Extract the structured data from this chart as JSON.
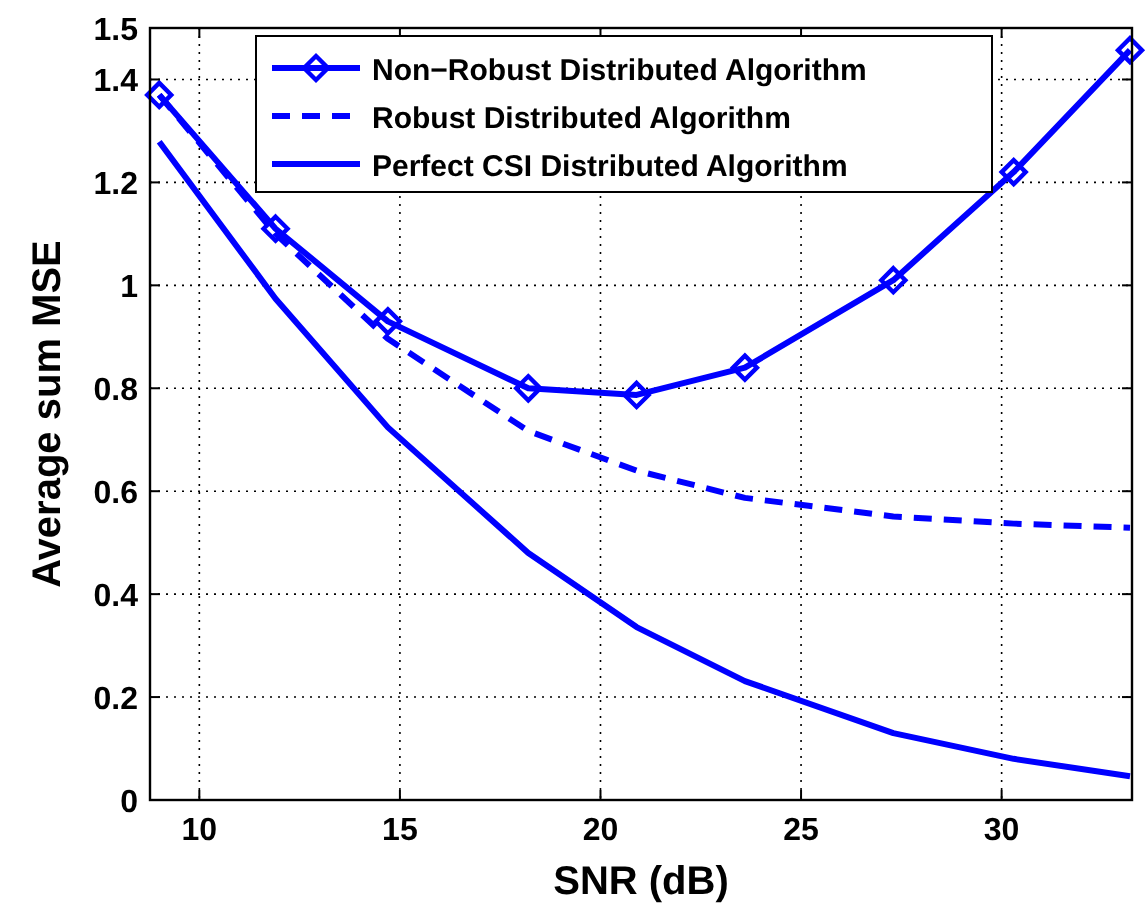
{
  "chart_data": {
    "type": "line",
    "xlabel": "SNR (dB)",
    "ylabel": "Average sum MSE",
    "x": [
      9,
      11.9,
      14.7,
      18.2,
      20.9,
      23.6,
      27.3,
      30.3,
      33.2
    ],
    "series": [
      {
        "name": "Non−Robust Distributed Algorithm",
        "color": "#0000ff",
        "marker": "diamond",
        "line_style": "solid",
        "values": [
          1.37,
          1.11,
          0.93,
          0.8,
          0.787,
          0.84,
          1.01,
          1.22,
          1.457
        ]
      },
      {
        "name": "Robust Distributed Algorithm",
        "color": "#0000ff",
        "marker": "none",
        "line_style": "dashed",
        "values": [
          1.37,
          1.1,
          0.896,
          0.717,
          0.64,
          0.587,
          0.551,
          0.537,
          0.529
        ]
      },
      {
        "name": "Perfect CSI Distributed Algorithm",
        "color": "#0000ff",
        "marker": "none",
        "line_style": "solid",
        "values": [
          1.279,
          0.974,
          0.724,
          0.48,
          0.336,
          0.231,
          0.13,
          0.08,
          0.046
        ]
      }
    ],
    "xlim": [
      8.77,
      33.25
    ],
    "xticks": [
      10,
      15,
      20,
      25,
      30
    ],
    "ylim": [
      0,
      1.5
    ],
    "yticks": [
      0,
      0.2,
      0.4,
      0.6,
      0.8,
      1,
      1.2,
      1.4,
      1.5
    ],
    "grid": true,
    "legend": "top"
  }
}
